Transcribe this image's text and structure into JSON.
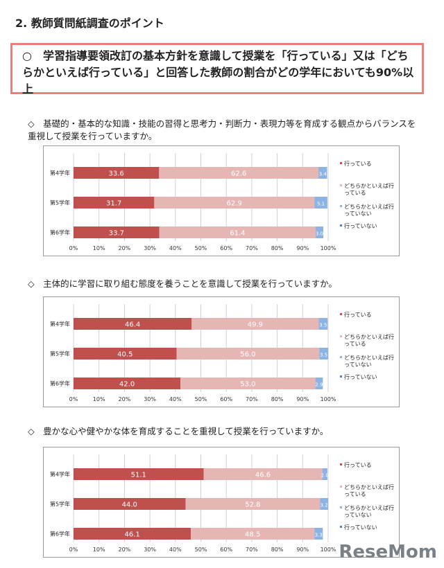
{
  "title": "2. 教師質問紙調査のポイント",
  "point": "○　学習指導要領改訂の基本方針を意識して授業を「行っている」又は「どちらかといえば行っている」と回答した教師の割合がどの学年においても90%以上",
  "watermark": "ReseMom",
  "colors": {
    "行っている": "#c0504d",
    "どちらかといえば行っている": "#e6b6b5",
    "どちらかといえば行っていない": "#8db3e2",
    "行っていない": "#4f81bd"
  },
  "chart_data": [
    {
      "type": "bar",
      "stacked": true,
      "orientation": "horizontal",
      "title": "◇　基礎的・基本的な知識・技能の習得と思考力・判断力・表現力等を育成する観点からバランスを重視して授業を行っていますか。",
      "categories": [
        "第4学年",
        "第5学年",
        "第6学年"
      ],
      "series": [
        {
          "name": "行っている",
          "values": [
            33.6,
            31.7,
            33.7
          ]
        },
        {
          "name": "どちらかといえば行っている",
          "values": [
            62.6,
            62.9,
            61.4
          ]
        },
        {
          "name": "どちらかといえば行っていない",
          "values": [
            3.4,
            5.1,
            3.0
          ]
        },
        {
          "name": "行っていない",
          "values": [
            0,
            0,
            0
          ]
        }
      ],
      "xlim": [
        0,
        100
      ],
      "xticks": [
        "0%",
        "10%",
        "20%",
        "30%",
        "40%",
        "50%",
        "60%",
        "70%",
        "80%",
        "90%",
        "100%"
      ],
      "grid": true,
      "legend": "right"
    },
    {
      "type": "bar",
      "stacked": true,
      "orientation": "horizontal",
      "title": "◇　主体的に学習に取り組む態度を養うことを意識して授業を行っていますか。",
      "categories": [
        "第4学年",
        "第5学年",
        "第6学年"
      ],
      "series": [
        {
          "name": "行っている",
          "values": [
            46.4,
            40.5,
            42.0
          ]
        },
        {
          "name": "どちらかといえば行っている",
          "values": [
            49.9,
            56.0,
            53.0
          ]
        },
        {
          "name": "どちらかといえば行っていない",
          "values": [
            3.5,
            3.5,
            2.9
          ]
        },
        {
          "name": "行っていない",
          "values": [
            0,
            0,
            0
          ]
        }
      ],
      "xlim": [
        0,
        100
      ],
      "xticks": [
        "0%",
        "10%",
        "20%",
        "30%",
        "40%",
        "50%",
        "60%",
        "70%",
        "80%",
        "90%",
        "100%"
      ],
      "grid": true,
      "legend": "right"
    },
    {
      "type": "bar",
      "stacked": true,
      "orientation": "horizontal",
      "title": "◇　豊かな心や健やかな体を育成することを重視して授業を行っていますか。",
      "categories": [
        "第4学年",
        "第5学年",
        "第6学年"
      ],
      "series": [
        {
          "name": "行っている",
          "values": [
            51.1,
            44.0,
            46.1
          ]
        },
        {
          "name": "どちらかといえば行っている",
          "values": [
            46.6,
            52.8,
            48.5
          ]
        },
        {
          "name": "どちらかといえば行っていない",
          "values": [
            2.0,
            3.2,
            3.3
          ]
        },
        {
          "name": "行っていない",
          "values": [
            0,
            0,
            0
          ]
        }
      ],
      "xlim": [
        0,
        100
      ],
      "xticks": [
        "0%",
        "10%",
        "20%",
        "30%",
        "40%",
        "50%",
        "60%",
        "70%",
        "80%",
        "90%",
        "100%"
      ],
      "grid": true,
      "legend": "right"
    }
  ]
}
